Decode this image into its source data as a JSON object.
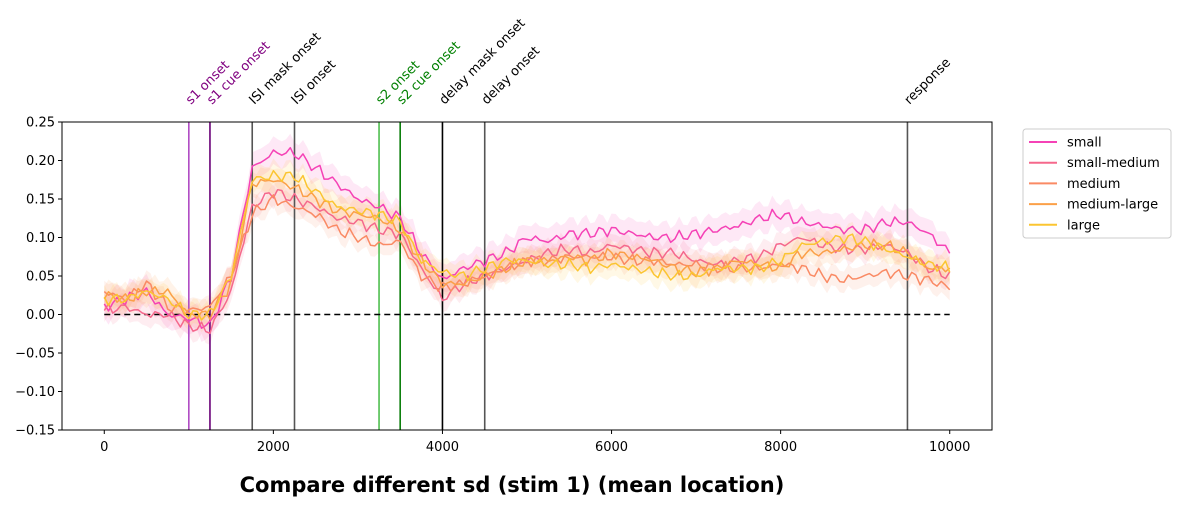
{
  "chart_data": {
    "type": "line",
    "title": "Compare different sd (stim 1) (mean location)",
    "xlabel": "",
    "ylabel": "",
    "xlim": [
      -500,
      10500
    ],
    "ylim": [
      -0.15,
      0.25
    ],
    "xticks": [
      0,
      2000,
      4000,
      6000,
      8000,
      10000
    ],
    "yticks": [
      -0.15,
      -0.1,
      -0.05,
      0.0,
      0.05,
      0.1,
      0.15,
      0.2,
      0.25
    ],
    "grid": false,
    "legend_position": "outside right, top",
    "reference_line": {
      "y": 0,
      "x_range": [
        0,
        10000
      ],
      "style": "dashed",
      "color": "#000000"
    },
    "event_lines": [
      {
        "x": 1000,
        "label": "s1 onset",
        "color": "#b04bc4"
      },
      {
        "x": 1250,
        "label": "s1 cue onset",
        "color": "#6a0078"
      },
      {
        "x": 1750,
        "label": "ISI mask onset",
        "color": "#555555"
      },
      {
        "x": 2250,
        "label": "ISI onset",
        "color": "#555555"
      },
      {
        "x": 3250,
        "label": "s2 onset",
        "color": "#4fbf4f"
      },
      {
        "x": 3500,
        "label": "s2 cue onset",
        "color": "#0a7d0a"
      },
      {
        "x": 4000,
        "label": "delay mask onset",
        "color": "#000000"
      },
      {
        "x": 4500,
        "label": "delay onset",
        "color": "#555555"
      },
      {
        "x": 9500,
        "label": "response",
        "color": "#555555"
      }
    ],
    "event_label_colors": {
      "s1 onset": "#800080",
      "s1 cue onset": "#800080",
      "ISI mask onset": "#000000",
      "ISI onset": "#000000",
      "s2 onset": "#008000",
      "s2 cue onset": "#008000",
      "delay mask onset": "#000000",
      "delay onset": "#000000",
      "response": "#000000"
    },
    "x": [
      0,
      250,
      500,
      750,
      1000,
      1250,
      1500,
      1750,
      2000,
      2250,
      2500,
      2750,
      3000,
      3250,
      3500,
      3750,
      4000,
      4250,
      4500,
      4750,
      5000,
      5250,
      5500,
      5750,
      6000,
      6250,
      6500,
      6750,
      7000,
      7250,
      7500,
      7750,
      8000,
      8250,
      8500,
      8750,
      9000,
      9250,
      9500,
      9750,
      10000
    ],
    "series": [
      {
        "name": "small",
        "color": "#f542b6",
        "band": 0.018,
        "values": [
          0.01,
          0.02,
          0.03,
          0.0,
          -0.005,
          -0.015,
          0.05,
          0.19,
          0.21,
          0.21,
          0.19,
          0.17,
          0.15,
          0.14,
          0.125,
          0.08,
          0.045,
          0.06,
          0.07,
          0.08,
          0.1,
          0.095,
          0.105,
          0.105,
          0.11,
          0.105,
          0.1,
          0.1,
          0.105,
          0.11,
          0.115,
          0.125,
          0.13,
          0.12,
          0.115,
          0.11,
          0.11,
          0.12,
          0.12,
          0.105,
          0.08
        ]
      },
      {
        "name": "small-medium",
        "color": "#f5688c",
        "band": 0.015,
        "values": [
          0.005,
          0.01,
          0.0,
          0.0,
          -0.015,
          -0.02,
          0.03,
          0.14,
          0.16,
          0.15,
          0.14,
          0.125,
          0.12,
          0.11,
          0.105,
          0.06,
          0.02,
          0.04,
          0.05,
          0.06,
          0.07,
          0.08,
          0.085,
          0.08,
          0.09,
          0.085,
          0.08,
          0.08,
          0.07,
          0.065,
          0.07,
          0.075,
          0.09,
          0.1,
          0.09,
          0.085,
          0.085,
          0.09,
          0.08,
          0.06,
          0.05
        ]
      },
      {
        "name": "medium",
        "color": "#fa8a64",
        "band": 0.014,
        "values": [
          0.03,
          0.02,
          0.04,
          0.01,
          0.005,
          0.01,
          0.05,
          0.13,
          0.15,
          0.14,
          0.13,
          0.11,
          0.1,
          0.09,
          0.095,
          0.05,
          0.035,
          0.04,
          0.05,
          0.06,
          0.07,
          0.07,
          0.075,
          0.075,
          0.075,
          0.07,
          0.07,
          0.065,
          0.065,
          0.06,
          0.06,
          0.06,
          0.065,
          0.06,
          0.05,
          0.045,
          0.05,
          0.055,
          0.05,
          0.045,
          0.035
        ]
      },
      {
        "name": "medium-large",
        "color": "#fba048",
        "band": 0.016,
        "values": [
          0.025,
          0.02,
          0.03,
          0.03,
          0.0,
          0.0,
          0.04,
          0.17,
          0.175,
          0.165,
          0.15,
          0.135,
          0.13,
          0.125,
          0.11,
          0.07,
          0.04,
          0.04,
          0.05,
          0.06,
          0.07,
          0.07,
          0.075,
          0.07,
          0.08,
          0.075,
          0.07,
          0.06,
          0.055,
          0.06,
          0.07,
          0.065,
          0.06,
          0.08,
          0.08,
          0.085,
          0.09,
          0.09,
          0.08,
          0.06,
          0.06
        ]
      },
      {
        "name": "large",
        "color": "#fbc531",
        "band": 0.016,
        "values": [
          0.02,
          0.02,
          0.03,
          0.02,
          0.0,
          0.0,
          0.05,
          0.175,
          0.18,
          0.18,
          0.16,
          0.14,
          0.135,
          0.13,
          0.12,
          0.07,
          0.055,
          0.05,
          0.06,
          0.07,
          0.07,
          0.065,
          0.065,
          0.06,
          0.065,
          0.06,
          0.055,
          0.05,
          0.05,
          0.06,
          0.06,
          0.06,
          0.07,
          0.09,
          0.095,
          0.1,
          0.095,
          0.085,
          0.075,
          0.065,
          0.06
        ]
      }
    ]
  }
}
